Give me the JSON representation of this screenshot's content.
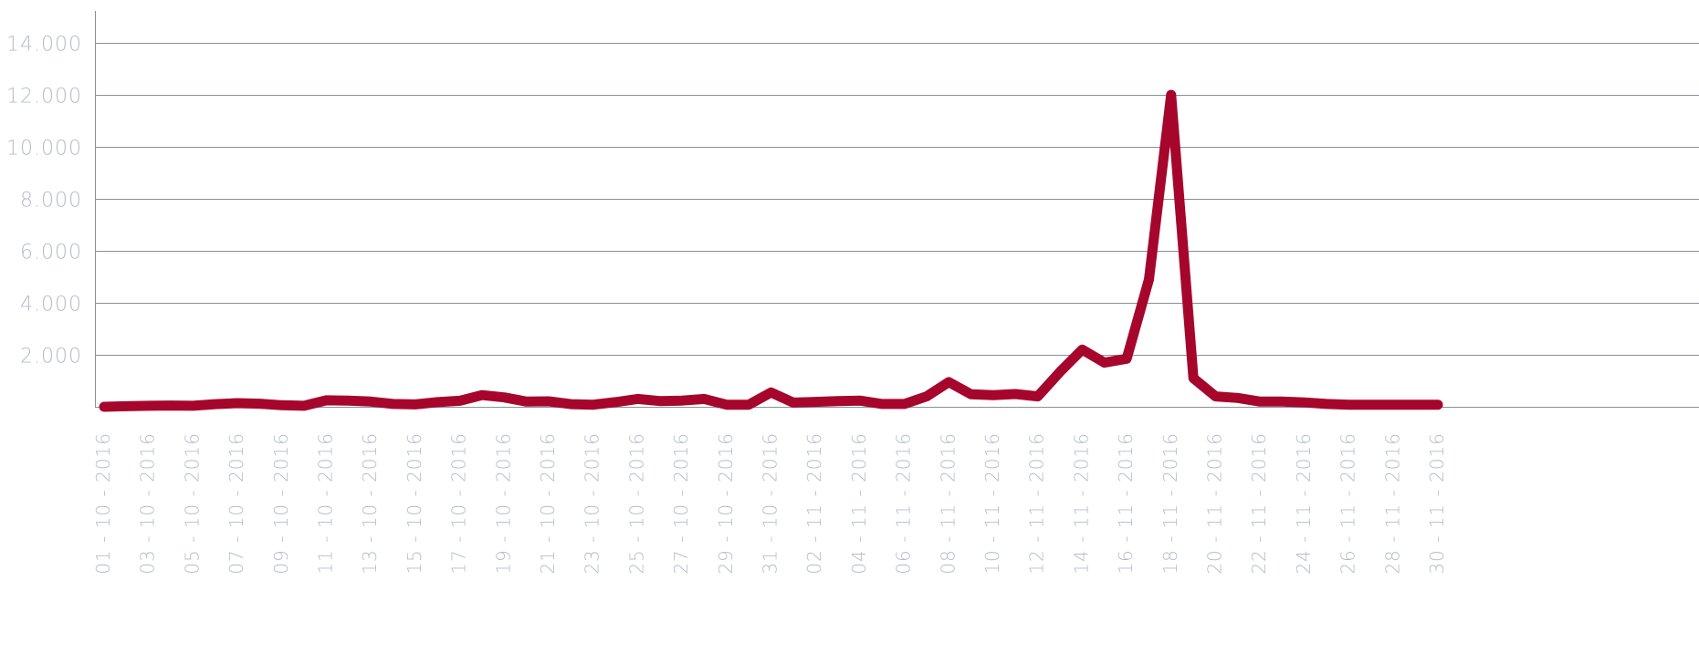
{
  "chart_data": {
    "type": "line",
    "title": "",
    "xlabel": "",
    "ylabel": "",
    "ylim": [
      0,
      15000
    ],
    "grid": true,
    "line_color": "#a6062c",
    "y_ticks": [
      {
        "value": 2000,
        "label": "2.000"
      },
      {
        "value": 4000,
        "label": "4.000"
      },
      {
        "value": 6000,
        "label": "6.000"
      },
      {
        "value": 8000,
        "label": "8.000"
      },
      {
        "value": 10000,
        "label": "10.000"
      },
      {
        "value": 12000,
        "label": "12.000"
      },
      {
        "value": 14000,
        "label": "14.000"
      }
    ],
    "x_tick_labels": [
      "01 - 10 - 2016",
      "03 - 10 - 2016",
      "05 - 10 - 2016",
      "07 - 10 - 2016",
      "09 - 10 - 2016",
      "11 - 10 - 2016",
      "13 - 10 - 2016",
      "15 - 10 - 2016",
      "17 - 10 - 2016",
      "19 - 10 - 2016",
      "21 - 10 - 2016",
      "23 - 10 - 2016",
      "25 - 10 - 2016",
      "27 - 10 - 2016",
      "29 - 10 - 2016",
      "31 - 10 - 2016",
      "02 - 11 - 2016",
      "04 - 11 - 2016",
      "06 - 11 - 2016",
      "08 - 11 - 2016",
      "10 - 11 - 2016",
      "12 - 11 - 2016",
      "14 - 11 - 2016",
      "16 - 11 - 2016",
      "18 - 11 - 2016",
      "20 - 11 - 2016",
      "22 - 11 - 2016",
      "24 - 11 - 2016",
      "26 - 11 - 2016",
      "28 - 11 - 2016",
      "30 - 11 - 2016"
    ],
    "series": [
      {
        "values": [
          0,
          20,
          40,
          50,
          40,
          100,
          140,
          120,
          60,
          40,
          250,
          240,
          200,
          110,
          90,
          180,
          230,
          450,
          360,
          200,
          210,
          100,
          80,
          180,
          300,
          220,
          240,
          300,
          80,
          80,
          550,
          160,
          190,
          220,
          240,
          110,
          110,
          400,
          950,
          480,
          450,
          490,
          400,
          1340,
          2200,
          1700,
          1850,
          4900,
          12000,
          1100,
          400,
          340,
          200,
          200,
          170,
          110,
          80,
          80,
          80,
          80,
          80
        ]
      }
    ]
  }
}
